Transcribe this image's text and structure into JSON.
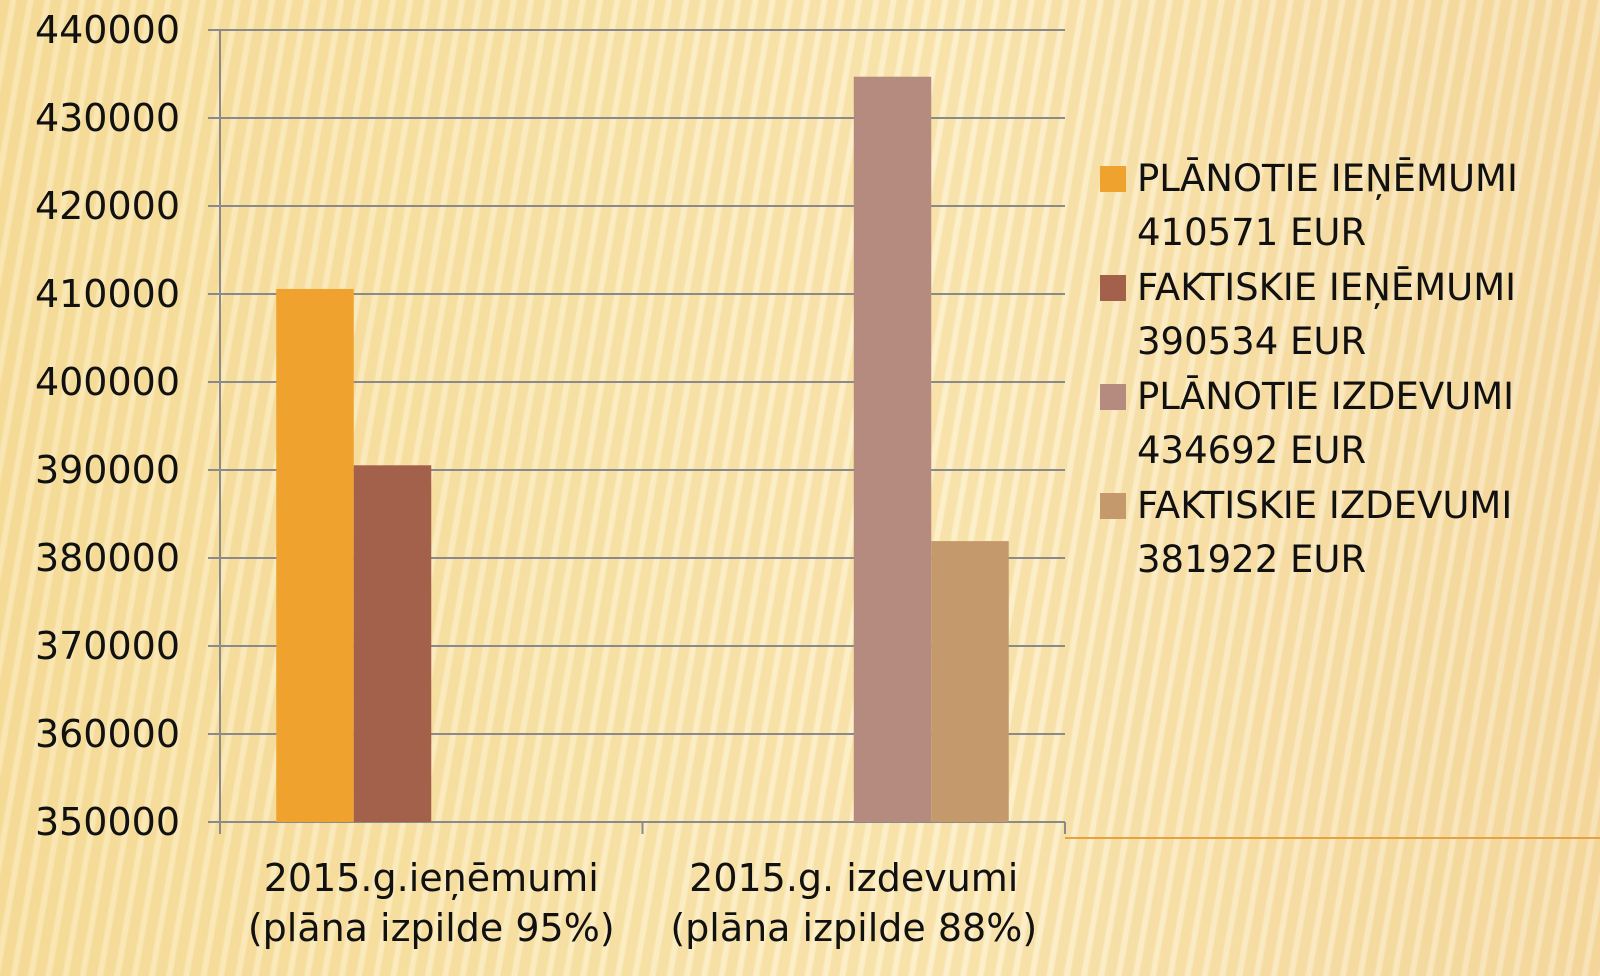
{
  "chart_data": {
    "type": "bar",
    "categories": [
      "2015.g.ieņēmumi\n(plāna izpilde 95%)",
      "2015.g. izdevumi\n(plāna izpilde 88%)"
    ],
    "series": [
      {
        "name": "PLĀNOTIE IEŅĒMUMI\n410571 EUR",
        "color": "#f0a22e",
        "values": [
          410571,
          null
        ]
      },
      {
        "name": "FAKTISKIE IEŅĒMUMI\n390534 EUR",
        "color": "#a3614b",
        "values": [
          390534,
          null
        ]
      },
      {
        "name": "PLĀNOTIE IZDEVUMI\n434692 EUR",
        "color": "#b58b80",
        "values": [
          null,
          434692
        ]
      },
      {
        "name": "FAKTISKIE IZDEVUMI\n381922 EUR",
        "color": "#c49a6c",
        "values": [
          null,
          381922
        ]
      }
    ],
    "ylim": [
      350000,
      440000
    ],
    "yticks": [
      350000,
      360000,
      370000,
      380000,
      390000,
      400000,
      410000,
      420000,
      430000,
      440000
    ],
    "grid": true,
    "legend": "right"
  }
}
